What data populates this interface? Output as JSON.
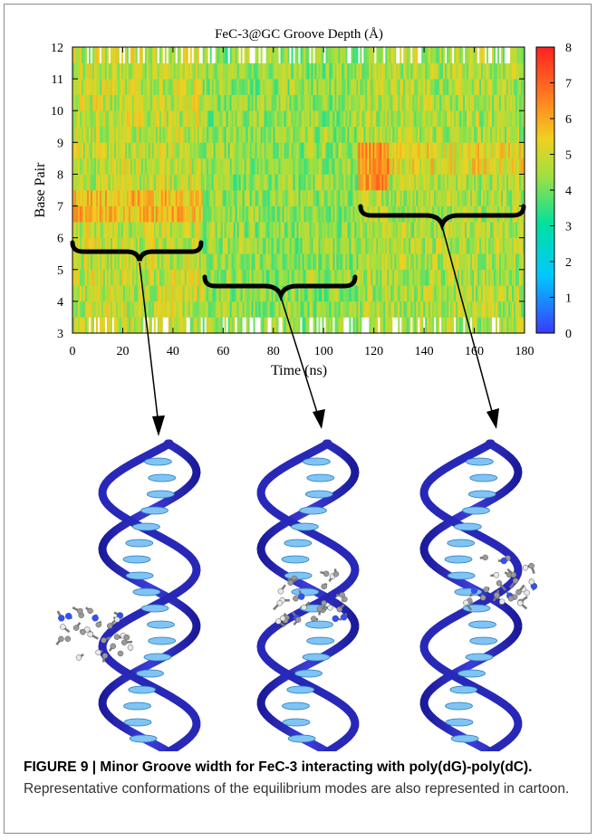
{
  "chart_data": {
    "type": "heatmap",
    "title": "FeC-3@GC Groove Depth (Å)",
    "xlabel": "Time (ns)",
    "ylabel": "Base Pair",
    "xlim": [
      0,
      180
    ],
    "ylim": [
      3,
      12
    ],
    "xticks": [
      "0",
      "20",
      "40",
      "60",
      "80",
      "100",
      "120",
      "140",
      "160",
      "180"
    ],
    "yticks": [
      "3",
      "4",
      "5",
      "6",
      "7",
      "8",
      "9",
      "10",
      "11",
      "12"
    ],
    "colorbar": {
      "min": 0,
      "max": 8,
      "ticks": [
        "0",
        "1",
        "2",
        "3",
        "4",
        "5",
        "6",
        "7",
        "8"
      ]
    },
    "regions": [
      {
        "x": [
          0,
          52
        ],
        "typical_value": 4.8,
        "note": "higher values near base pair 7"
      },
      {
        "x": [
          52,
          114
        ],
        "typical_value": 4.3
      },
      {
        "x": [
          114,
          180
        ],
        "typical_value": 4.6,
        "note": "high values at base pairs 8-9 near 118-125 ns"
      }
    ],
    "gridlines": false,
    "legend": "colorbar-right",
    "colors": [
      "#3a3aff",
      "#00c8ff",
      "#00e0a0",
      "#a0e040",
      "#f0d020",
      "#ff8020",
      "#ff2020"
    ]
  },
  "caption": {
    "label": "FIGURE 9 | Minor Groove width for FeC-3 interacting with poly(dG)-poly(dC).",
    "text": " Representative conformations of the equilibrium modes are also represented in cartoon."
  },
  "illustrations": [
    "dna-helix-with-complex",
    "dna-helix-with-complex",
    "dna-helix-with-complex"
  ]
}
